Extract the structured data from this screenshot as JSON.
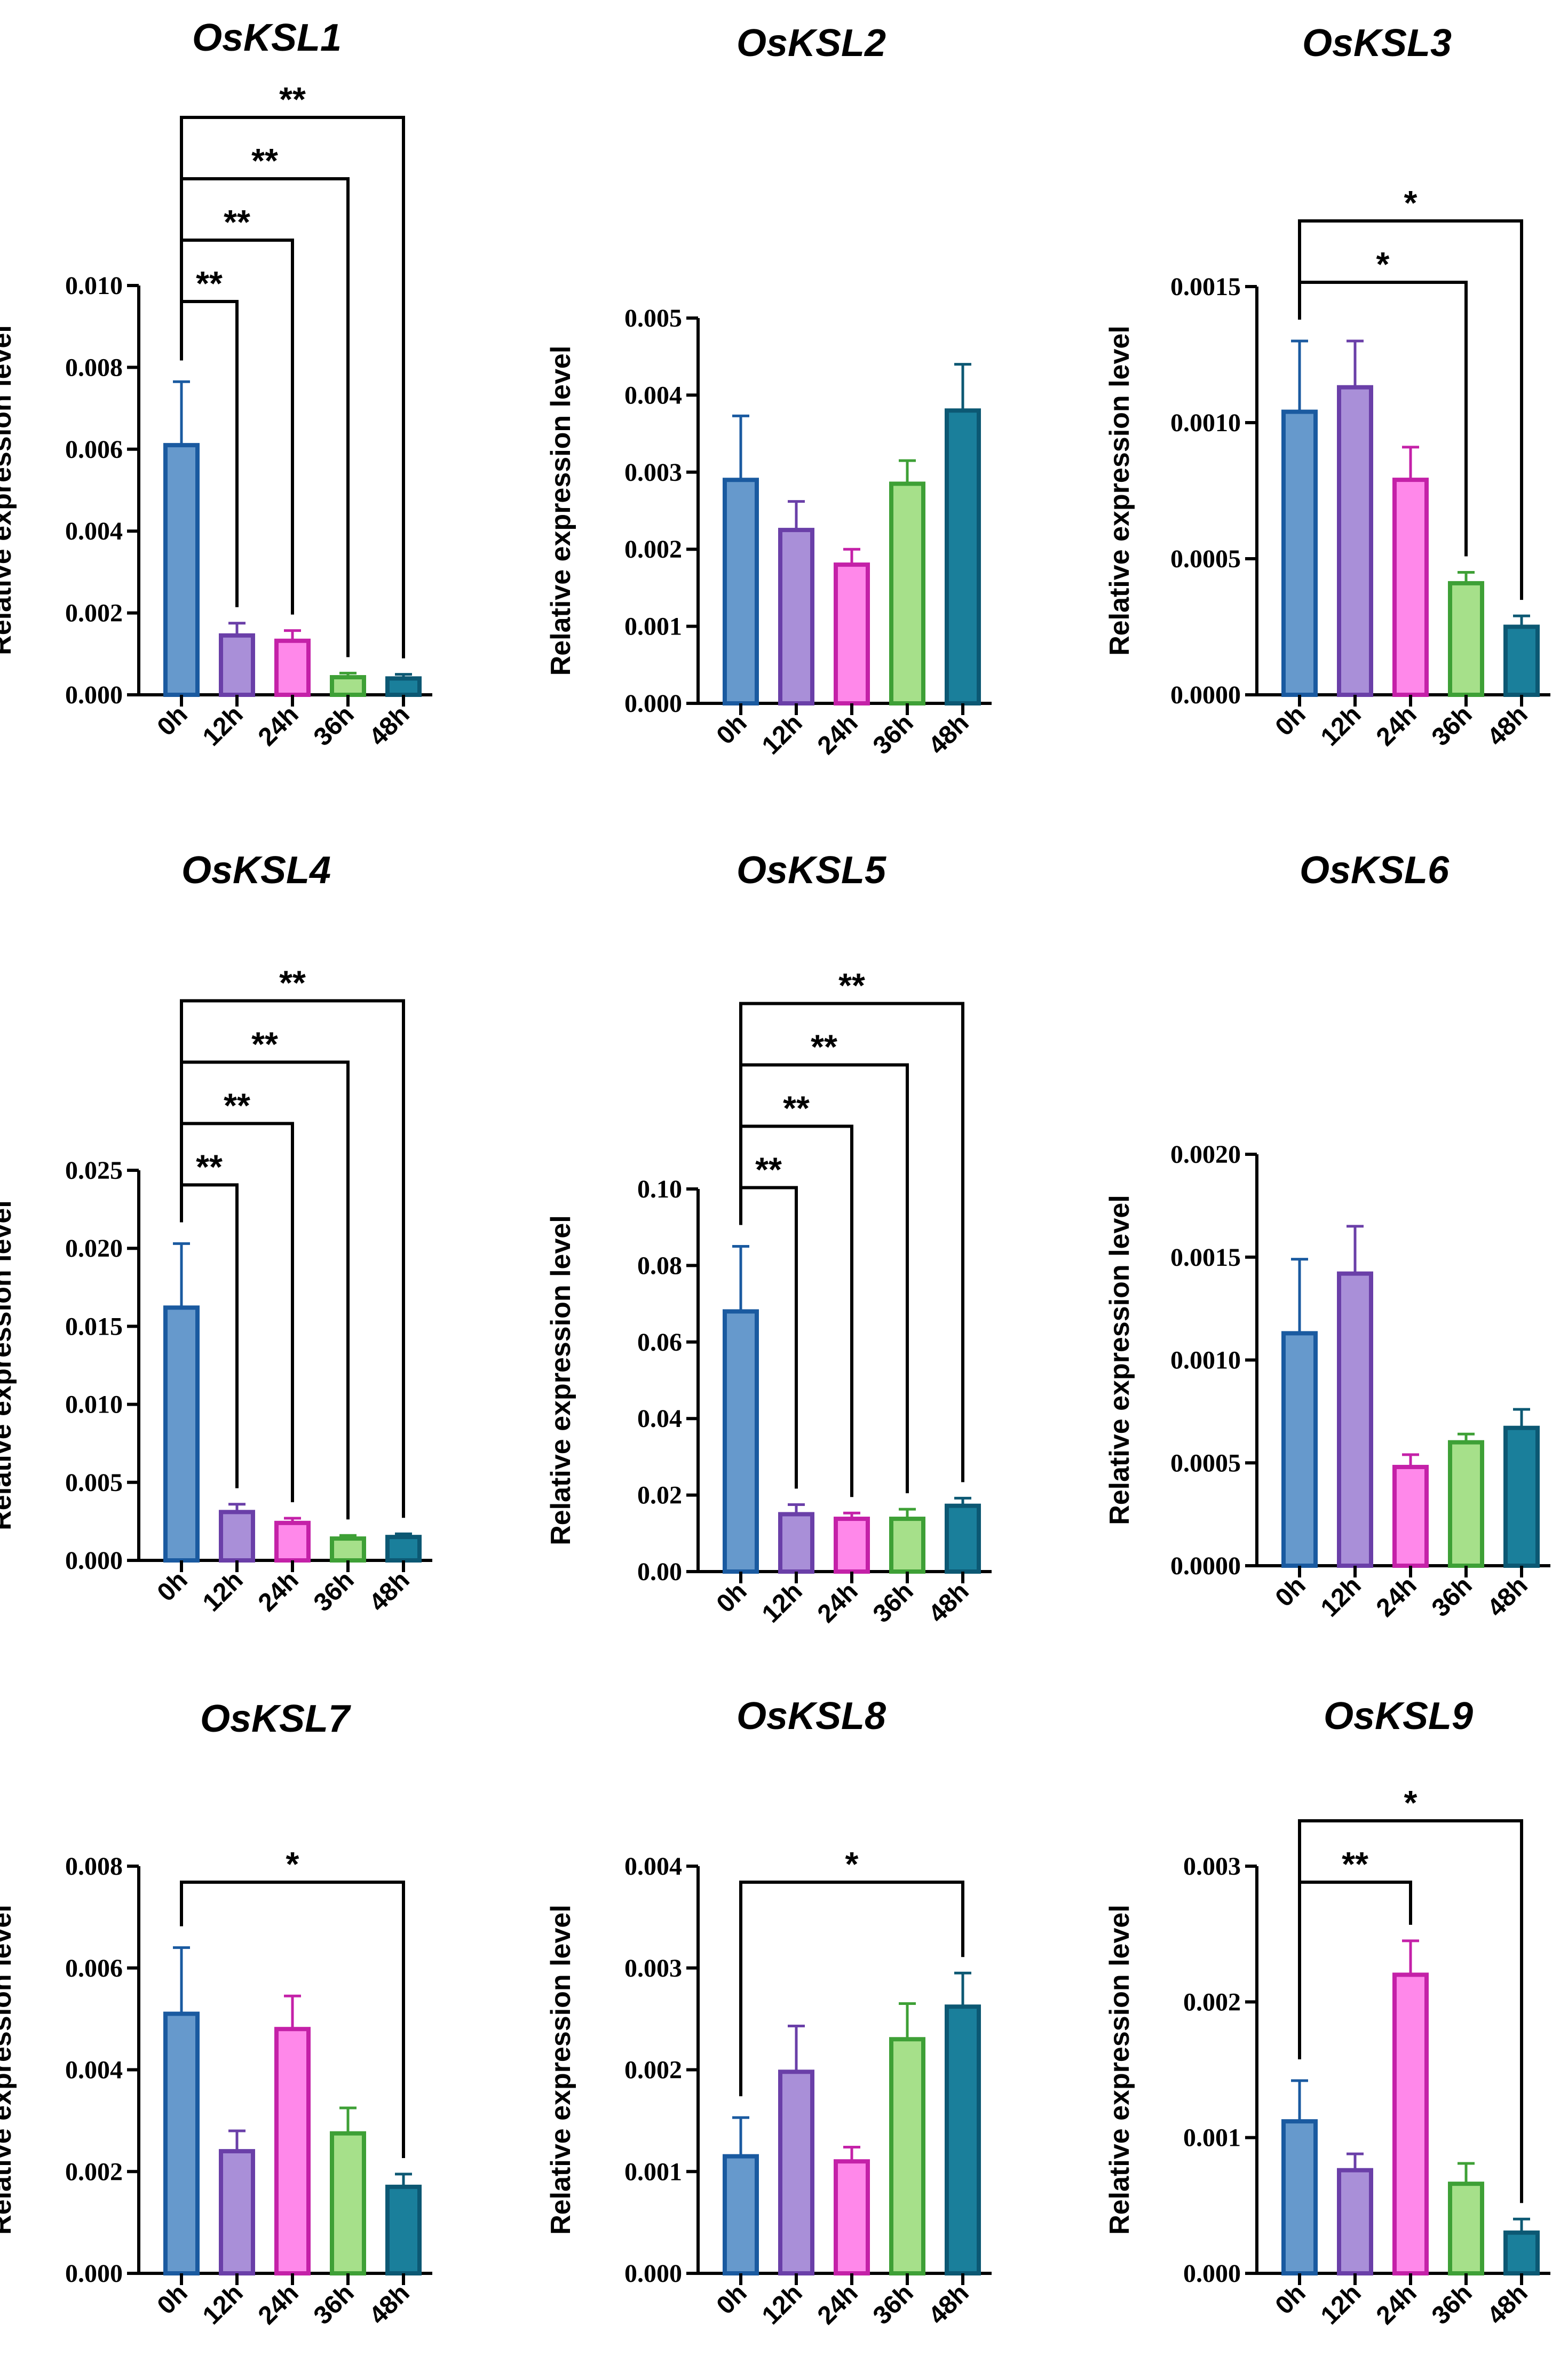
{
  "colors": {
    "0h": {
      "fill": "#6699cc",
      "stroke": "#1a5aa0"
    },
    "12h": {
      "fill": "#a98fd8",
      "stroke": "#6a3fa8"
    },
    "24h": {
      "fill": "#ff88ea",
      "stroke": "#c421a8"
    },
    "36h": {
      "fill": "#a6e08a",
      "stroke": "#3ea036"
    },
    "48h": {
      "fill": "#1a7f9b",
      "stroke": "#0c5873"
    }
  },
  "chart_data": [
    {
      "type": "bar",
      "title": "OsKSL1",
      "ylabel": "Relative expression level",
      "xlabel": "",
      "categories": [
        "0h",
        "12h",
        "24h",
        "36h",
        "48h"
      ],
      "values": [
        0.0061,
        0.00145,
        0.00132,
        0.00043,
        0.0004
      ],
      "errors": [
        0.00155,
        0.0003,
        0.00025,
        0.0001,
        0.0001
      ],
      "ylim": [
        0,
        0.01
      ],
      "yticks": [
        "0.000",
        "0.002",
        "0.004",
        "0.006",
        "0.008",
        "0.010"
      ],
      "significance": [
        {
          "from": "0h",
          "to": "12h",
          "label": "**"
        },
        {
          "from": "0h",
          "to": "24h",
          "label": "**"
        },
        {
          "from": "0h",
          "to": "36h",
          "label": "**"
        },
        {
          "from": "0h",
          "to": "48h",
          "label": "**"
        }
      ]
    },
    {
      "type": "bar",
      "title": "OsKSL2",
      "ylabel": "Relative expression level",
      "xlabel": "",
      "categories": [
        "0h",
        "12h",
        "24h",
        "36h",
        "48h"
      ],
      "values": [
        0.0029,
        0.00225,
        0.0018,
        0.00285,
        0.0038
      ],
      "errors": [
        0.00083,
        0.00037,
        0.0002,
        0.0003,
        0.0006
      ],
      "ylim": [
        0,
        0.005
      ],
      "yticks": [
        "0.000",
        "0.001",
        "0.002",
        "0.003",
        "0.004",
        "0.005"
      ],
      "significance": []
    },
    {
      "type": "bar",
      "title": "OsKSL3",
      "ylabel": "Relative expression level",
      "xlabel": "",
      "categories": [
        "0h",
        "12h",
        "24h",
        "36h",
        "48h"
      ],
      "values": [
        0.00104,
        0.00113,
        0.00079,
        0.00041,
        0.00025
      ],
      "errors": [
        0.00026,
        0.00017,
        0.00012,
        4e-05,
        4e-05
      ],
      "ylim": [
        0,
        0.0015
      ],
      "yticks": [
        "0.0000",
        "0.0005",
        "0.0010",
        "0.0015"
      ],
      "significance": [
        {
          "from": "0h",
          "to": "36h",
          "label": "*"
        },
        {
          "from": "0h",
          "to": "48h",
          "label": "*"
        }
      ]
    },
    {
      "type": "bar",
      "title": "OsKSL4",
      "ylabel": "Relative expression level",
      "xlabel": "",
      "categories": [
        "0h",
        "12h",
        "24h",
        "36h",
        "48h"
      ],
      "values": [
        0.0162,
        0.0031,
        0.0024,
        0.0014,
        0.0015
      ],
      "errors": [
        0.0041,
        0.0005,
        0.0003,
        0.0002,
        0.0002
      ],
      "ylim": [
        0,
        0.025
      ],
      "yticks": [
        "0.000",
        "0.005",
        "0.010",
        "0.015",
        "0.020",
        "0.025"
      ],
      "significance": [
        {
          "from": "0h",
          "to": "12h",
          "label": "**"
        },
        {
          "from": "0h",
          "to": "24h",
          "label": "**"
        },
        {
          "from": "0h",
          "to": "36h",
          "label": "**"
        },
        {
          "from": "0h",
          "to": "48h",
          "label": "**"
        }
      ]
    },
    {
      "type": "bar",
      "title": "OsKSL5",
      "ylabel": "Relative expression level",
      "xlabel": "",
      "categories": [
        "0h",
        "12h",
        "24h",
        "36h",
        "48h"
      ],
      "values": [
        0.068,
        0.015,
        0.0138,
        0.0138,
        0.0172
      ],
      "errors": [
        0.017,
        0.0025,
        0.0015,
        0.0025,
        0.002
      ],
      "ylim": [
        0,
        0.1
      ],
      "yticks": [
        "0.00",
        "0.02",
        "0.04",
        "0.06",
        "0.08",
        "0.10"
      ],
      "significance": [
        {
          "from": "0h",
          "to": "12h",
          "label": "**"
        },
        {
          "from": "0h",
          "to": "24h",
          "label": "**"
        },
        {
          "from": "0h",
          "to": "36h",
          "label": "**"
        },
        {
          "from": "0h",
          "to": "48h",
          "label": "**"
        }
      ]
    },
    {
      "type": "bar",
      "title": "OsKSL6",
      "ylabel": "Relative expression level",
      "xlabel": "",
      "categories": [
        "0h",
        "12h",
        "24h",
        "36h",
        "48h"
      ],
      "values": [
        0.00113,
        0.00142,
        0.00048,
        0.0006,
        0.00067
      ],
      "errors": [
        0.00036,
        0.00023,
        6e-05,
        4e-05,
        9e-05
      ],
      "ylim": [
        0,
        0.002
      ],
      "yticks": [
        "0.0000",
        "0.0005",
        "0.0010",
        "0.0015",
        "0.0020"
      ],
      "significance": []
    },
    {
      "type": "bar",
      "title": "OsKSL7",
      "ylabel": "Relative expression level",
      "xlabel": "",
      "categories": [
        "0h",
        "12h",
        "24h",
        "36h",
        "48h"
      ],
      "values": [
        0.0051,
        0.0024,
        0.0048,
        0.00275,
        0.0017
      ],
      "errors": [
        0.0013,
        0.0004,
        0.00065,
        0.0005,
        0.00025
      ],
      "ylim": [
        0,
        0.008
      ],
      "yticks": [
        "0.000",
        "0.002",
        "0.004",
        "0.006",
        "0.008"
      ],
      "significance": [
        {
          "from": "0h",
          "to": "48h",
          "label": "*"
        }
      ]
    },
    {
      "type": "bar",
      "title": "OsKSL8",
      "ylabel": "Relative expression level",
      "xlabel": "",
      "categories": [
        "0h",
        "12h",
        "24h",
        "36h",
        "48h"
      ],
      "values": [
        0.00115,
        0.00198,
        0.0011,
        0.0023,
        0.00262
      ],
      "errors": [
        0.00038,
        0.00045,
        0.00014,
        0.00035,
        0.00033
      ],
      "ylim": [
        0,
        0.004
      ],
      "yticks": [
        "0.000",
        "0.001",
        "0.002",
        "0.003",
        "0.004"
      ],
      "significance": [
        {
          "from": "0h",
          "to": "48h",
          "label": "*"
        }
      ]
    },
    {
      "type": "bar",
      "title": "OsKSL9",
      "ylabel": "Relative expression level",
      "xlabel": "",
      "categories": [
        "0h",
        "12h",
        "24h",
        "36h",
        "48h"
      ],
      "values": [
        0.00112,
        0.00076,
        0.0022,
        0.00066,
        0.0003
      ],
      "errors": [
        0.0003,
        0.00012,
        0.00025,
        0.00015,
        0.0001
      ],
      "ylim": [
        0,
        0.003
      ],
      "yticks": [
        "0.000",
        "0.001",
        "0.002",
        "0.003"
      ],
      "significance": [
        {
          "from": "0h",
          "to": "24h",
          "label": "**"
        },
        {
          "from": "0h",
          "to": "48h",
          "label": "*"
        }
      ]
    }
  ]
}
